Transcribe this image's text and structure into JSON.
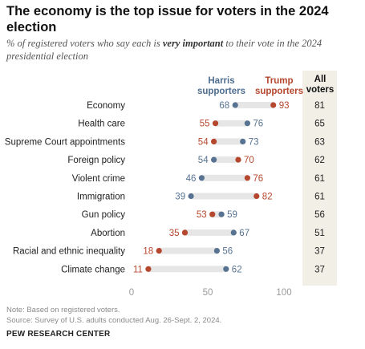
{
  "header": {
    "title": "The economy is the top issue for voters in the 2024 election",
    "subtitle_before": "% of registered voters who say each is ",
    "subtitle_emphasis": "very important",
    "subtitle_after": " to their vote in the 2024 presidential election"
  },
  "colors": {
    "harris": "#587391",
    "trump": "#b5472e",
    "bar": "#e6e6e6",
    "all_voters_column": "#f1efe6"
  },
  "chart_data": {
    "type": "scatter",
    "title": "The economy is the top issue for voters in the 2024 election",
    "categories": [
      "Economy",
      "Health care",
      "Supreme Court appointments",
      "Foreign policy",
      "Violent crime",
      "Immigration",
      "Gun policy",
      "Abortion",
      "Racial and ethnic inequality",
      "Climate change"
    ],
    "series": [
      {
        "name": "Harris supporters",
        "values": [
          68,
          76,
          73,
          54,
          46,
          39,
          59,
          67,
          56,
          62
        ]
      },
      {
        "name": "Trump supporters",
        "values": [
          93,
          55,
          54,
          70,
          76,
          82,
          53,
          35,
          18,
          11
        ]
      }
    ],
    "all_voters_label": "All voters",
    "all_voters": [
      81,
      65,
      63,
      62,
      61,
      61,
      56,
      51,
      37,
      37
    ],
    "xlim": [
      0,
      100
    ],
    "xticks": [
      0,
      50,
      100
    ],
    "grid": false,
    "legend": "top"
  },
  "footer": {
    "note": "Note: Based on registered voters.",
    "source": "Source: Survey of U.S. adults conducted Aug. 26-Sept. 2, 2024.",
    "org": "PEW RESEARCH CENTER"
  }
}
